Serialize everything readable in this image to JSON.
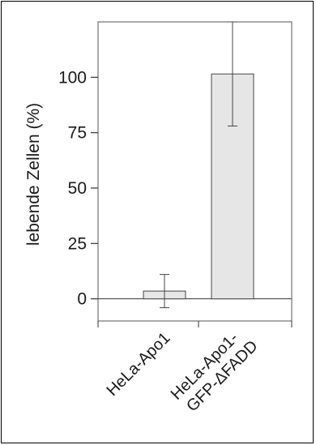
{
  "chart_data": {
    "type": "bar",
    "ylabel": "lebende Zellen (%)",
    "categories": [
      [
        "HeLa-Apo1"
      ],
      [
        "HeLa-Apo1-",
        "GFP-ΔFADD"
      ]
    ],
    "values": [
      3.5,
      101.5
    ],
    "error": [
      7.5,
      23.5
    ],
    "ylim": [
      -10,
      125
    ],
    "yticks": [
      0,
      25,
      50,
      75,
      100
    ],
    "ytick_labels": [
      "0",
      "25",
      "50",
      "75",
      "100"
    ],
    "bar_color": "#e6e6e6",
    "grid": false,
    "legend": "none"
  }
}
